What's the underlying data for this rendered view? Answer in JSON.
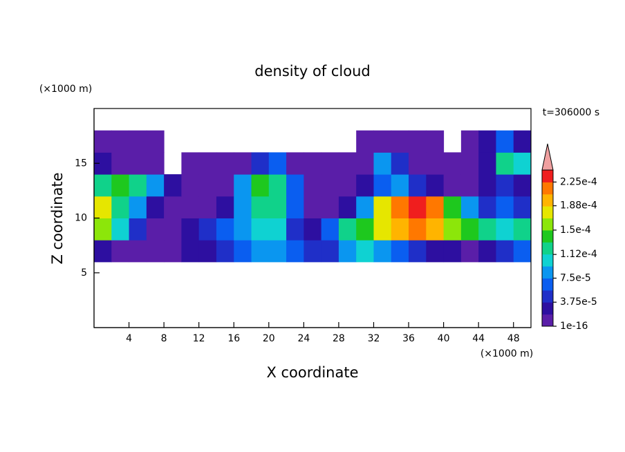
{
  "chart_data": {
    "type": "heatmap",
    "title": "density of cloud",
    "xlabel": "X coordinate",
    "ylabel": "Z coordinate",
    "xunit": "(×1000 m)",
    "yunit": "(×1000 m)",
    "time_label": "t=306000 s",
    "xlim": [
      0,
      50
    ],
    "ylim": [
      0,
      20
    ],
    "xticks": [
      4,
      8,
      12,
      16,
      20,
      24,
      28,
      32,
      36,
      40,
      44,
      48
    ],
    "yticks": [
      5,
      10,
      15
    ],
    "x": [
      1,
      3,
      5,
      7,
      9,
      11,
      13,
      15,
      17,
      19,
      21,
      23,
      25,
      27,
      29,
      31,
      33,
      35,
      37,
      39,
      41,
      43,
      45,
      47,
      49
    ],
    "y": [
      1,
      3,
      5,
      7,
      9,
      11,
      13,
      15,
      17,
      19
    ],
    "z": [
      [
        null,
        null,
        null,
        null,
        null,
        null,
        null,
        null,
        null,
        null,
        null,
        null,
        null,
        null,
        null,
        null,
        null,
        null,
        null,
        null,
        null,
        null,
        null,
        null,
        null
      ],
      [
        null,
        null,
        null,
        null,
        null,
        null,
        null,
        null,
        null,
        null,
        null,
        null,
        null,
        null,
        null,
        null,
        null,
        null,
        null,
        null,
        null,
        null,
        null,
        null,
        null
      ],
      [
        null,
        null,
        null,
        null,
        null,
        null,
        null,
        null,
        null,
        null,
        null,
        null,
        null,
        null,
        null,
        null,
        null,
        null,
        null,
        null,
        null,
        null,
        null,
        null,
        null
      ],
      [
        3e-05,
        1e-05,
        5e-06,
        5e-06,
        5e-06,
        2e-05,
        3e-05,
        4e-05,
        6e-05,
        8e-05,
        9e-05,
        6e-05,
        4e-05,
        5e-05,
        9e-05,
        0.0001,
        8e-05,
        6e-05,
        4e-05,
        3e-05,
        2e-05,
        1e-05,
        2e-05,
        4e-05,
        6e-05
      ],
      [
        0.00016,
        0.0001,
        4e-05,
        1e-05,
        5e-06,
        2e-05,
        4e-05,
        6e-05,
        8e-05,
        0.0001,
        0.00011,
        5e-05,
        2e-05,
        6e-05,
        0.00012,
        0.00015,
        0.00018,
        0.0002,
        0.00021,
        0.0002,
        0.00016,
        0.00014,
        0.00012,
        0.0001,
        0.00013
      ],
      [
        0.00017,
        0.00013,
        8e-05,
        3e-05,
        1e-05,
        5e-06,
        5e-06,
        2e-05,
        8e-05,
        0.00013,
        0.00012,
        6e-05,
        1e-05,
        5e-06,
        2e-05,
        8e-05,
        0.00017,
        0.00021,
        0.00023,
        0.00022,
        0.00015,
        8e-05,
        4e-05,
        6e-05,
        4e-05
      ],
      [
        0.00012,
        0.00014,
        0.00012,
        8e-05,
        3e-05,
        1e-05,
        5e-06,
        1e-05,
        8e-05,
        0.00014,
        0.00013,
        7e-05,
        5e-06,
        5e-06,
        5e-06,
        2e-05,
        6e-05,
        8e-05,
        5e-05,
        2e-05,
        1e-05,
        5e-06,
        2e-05,
        5e-05,
        3e-05
      ],
      [
        2e-05,
        1e-05,
        5e-06,
        5e-06,
        null,
        5e-06,
        5e-06,
        5e-06,
        1e-05,
        4e-05,
        6e-05,
        1e-05,
        5e-06,
        5e-06,
        5e-06,
        5e-06,
        8e-05,
        4e-05,
        1e-05,
        5e-06,
        5e-06,
        5e-06,
        3e-05,
        0.00012,
        0.0001
      ],
      [
        5e-06,
        5e-06,
        5e-06,
        5e-06,
        null,
        null,
        null,
        null,
        null,
        null,
        null,
        null,
        null,
        null,
        null,
        5e-06,
        5e-06,
        5e-06,
        5e-06,
        5e-06,
        null,
        5e-06,
        2e-05,
        6e-05,
        3e-05
      ],
      [
        null,
        null,
        null,
        null,
        null,
        null,
        null,
        null,
        null,
        null,
        null,
        null,
        null,
        null,
        null,
        null,
        null,
        null,
        null,
        null,
        null,
        null,
        null,
        null,
        null
      ]
    ],
    "colors": [
      "#5a1ea8",
      "#2d0fa0",
      "#1f2fc8",
      "#0a5ef0",
      "#0a96f0",
      "#0fd2d2",
      "#10d28a",
      "#1ec81e",
      "#8ce60a",
      "#e6e600",
      "#ffb400",
      "#ff7800",
      "#f01e1e"
    ],
    "over_color": "#f0a0a0",
    "clim": [
      1e-16,
      0.00024375
    ],
    "cticks": [
      {
        "value": 1e-16,
        "label": "1e-16"
      },
      {
        "value": 3.75e-05,
        "label": "3.75e-5"
      },
      {
        "value": 7.5e-05,
        "label": "7.5e-5"
      },
      {
        "value": 0.000112,
        "label": "1.12e-4"
      },
      {
        "value": 0.00015,
        "label": "1.5e-4"
      },
      {
        "value": 0.000188,
        "label": "1.88e-4"
      },
      {
        "value": 0.000225,
        "label": "2.25e-4"
      }
    ]
  }
}
